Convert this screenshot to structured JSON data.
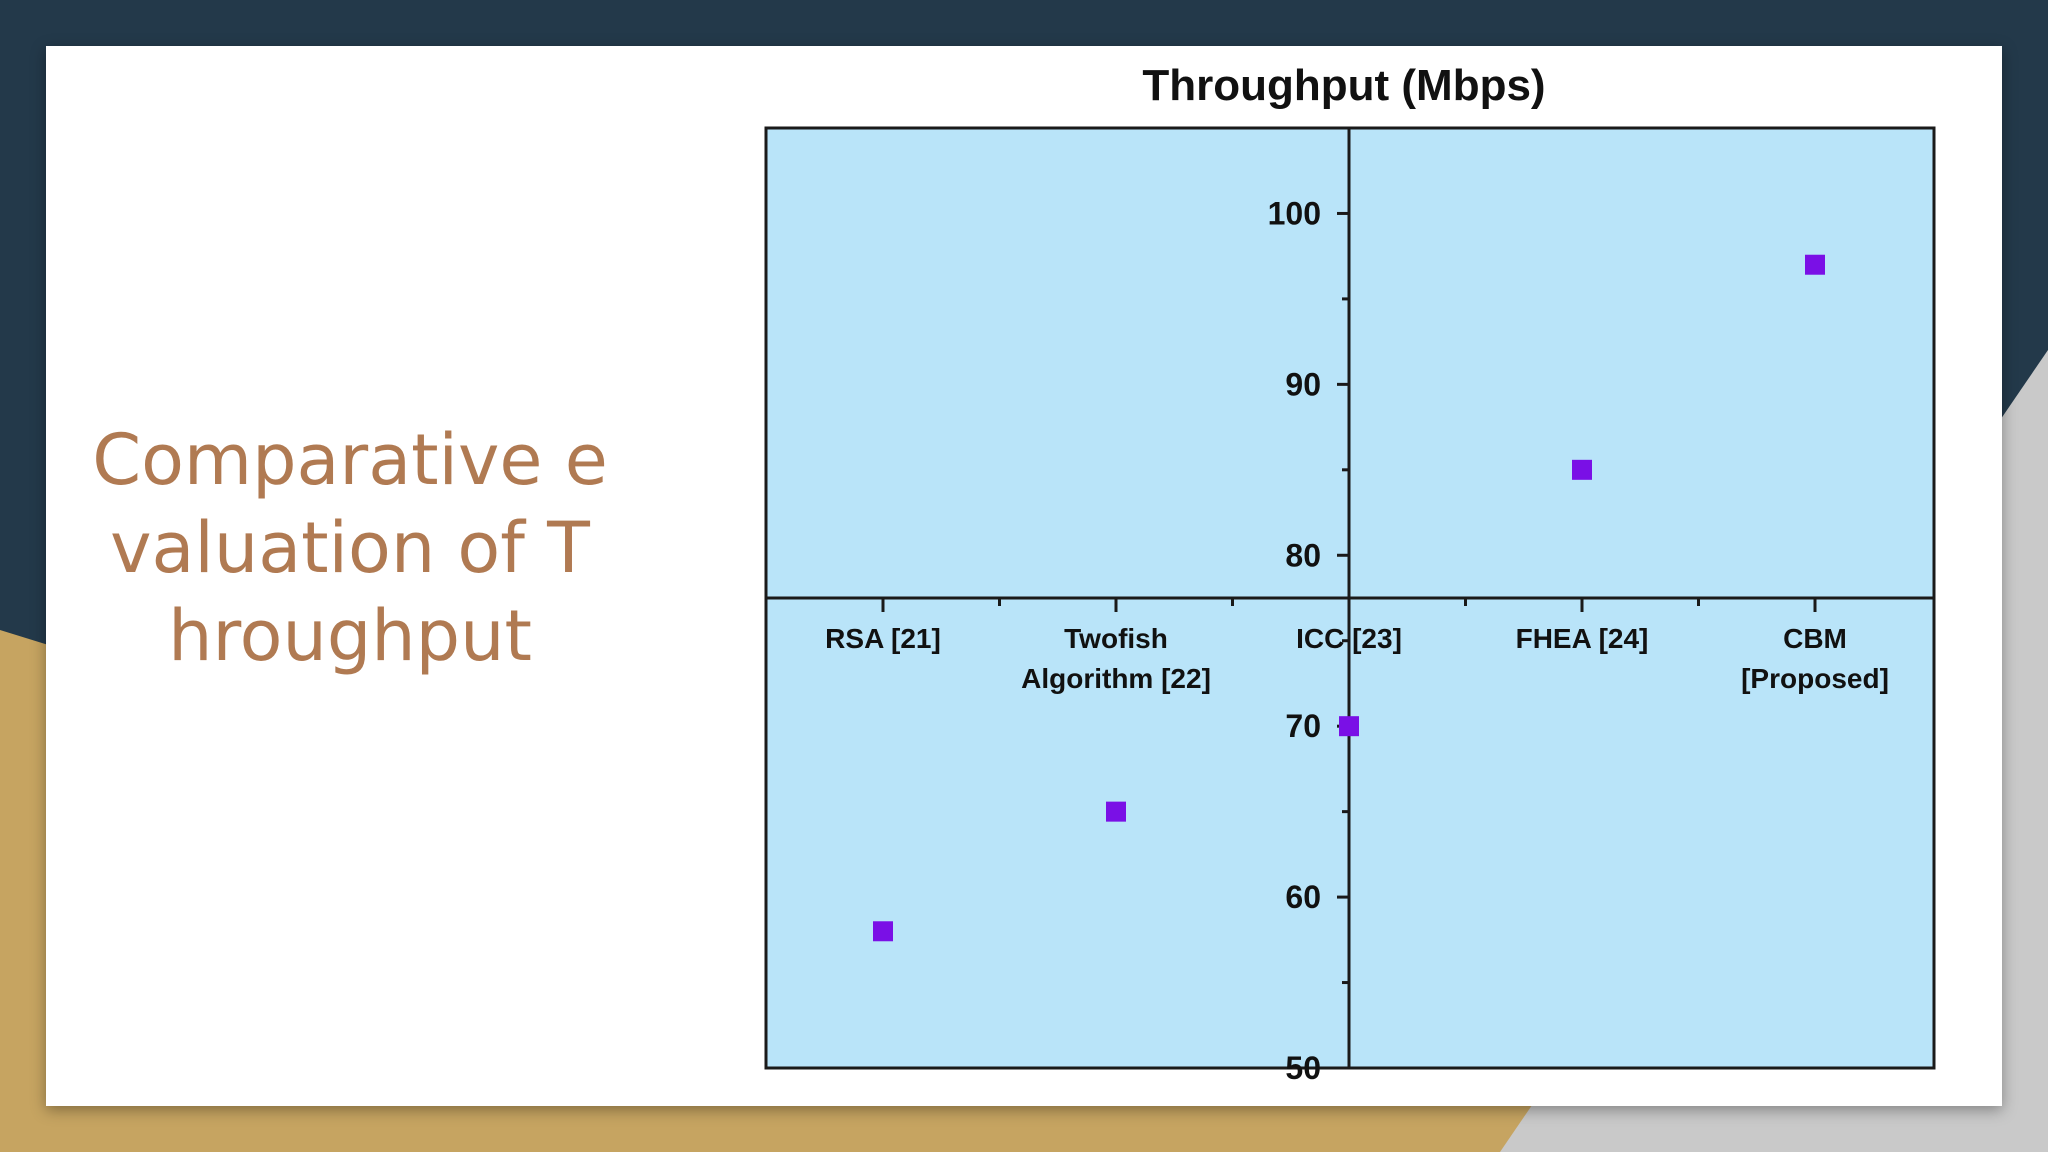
{
  "slide": {
    "title": "Comparative evaluation of Throughput"
  },
  "colors": {
    "background_dark": "#23394a",
    "accent_gold": "#c6a461",
    "shadow_gray": "#c9c9c9",
    "title_text": "#b07a52",
    "plot_bg": "#b9e4f9",
    "marker": "#7a10e6"
  },
  "chart_data": {
    "type": "scatter",
    "title": "Throughput (Mbps)",
    "xlabel": "",
    "ylabel": "",
    "categories": [
      "RSA [21]",
      "Twofish Algorithm [22]",
      "ICC [23]",
      "FHEA [24]",
      "CBM [Proposed]"
    ],
    "category_lines": [
      [
        "RSA [21]"
      ],
      [
        "Twofish",
        "Algorithm [22]"
      ],
      [
        "ICC [23]"
      ],
      [
        "FHEA [24]"
      ],
      [
        "CBM",
        "[Proposed]"
      ]
    ],
    "values": [
      58,
      65,
      70,
      85,
      97
    ],
    "ylim": [
      50,
      105
    ],
    "yticks": [
      50,
      60,
      70,
      80,
      90,
      100
    ],
    "x_axis_crosses_y_at": 77.5,
    "y_axis_at_category": "ICC [23]",
    "marker": "square",
    "grid": false,
    "legend": "none"
  }
}
